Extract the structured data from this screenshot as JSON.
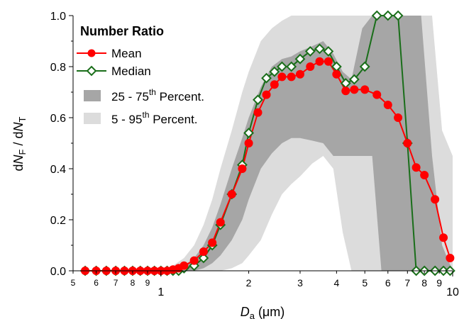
{
  "chart_data": {
    "type": "line",
    "title": "",
    "xlabel": "D_a (μm)",
    "ylabel": "dN_F / dN_T",
    "xscale": "log",
    "xlim": [
      0.5,
      10
    ],
    "ylim": [
      0,
      1.0
    ],
    "x_major_ticks": [
      1,
      10
    ],
    "x_minor_ticks": [
      0.5,
      0.6,
      0.7,
      0.8,
      0.9,
      2,
      3,
      4,
      5,
      6,
      7,
      8,
      9
    ],
    "y_ticks": [
      0.0,
      0.2,
      0.4,
      0.6,
      0.8,
      1.0
    ],
    "legend": {
      "title": "Number Ratio",
      "placement": "top-left",
      "entries": [
        "Mean",
        "Median",
        "25 - 75th Percent.",
        "5 - 95th Percent."
      ]
    },
    "colors": {
      "mean": "#ff0000",
      "median": "#1a6e1a",
      "band_25_75": "#a6a6a6",
      "band_5_95": "#dcdcdc"
    },
    "x": [
      0.55,
      0.6,
      0.65,
      0.7,
      0.75,
      0.8,
      0.85,
      0.9,
      0.95,
      1.0,
      1.05,
      1.1,
      1.15,
      1.2,
      1.3,
      1.4,
      1.5,
      1.6,
      1.75,
      1.9,
      2.0,
      2.15,
      2.3,
      2.45,
      2.6,
      2.8,
      3.0,
      3.25,
      3.5,
      3.75,
      4.0,
      4.3,
      4.6,
      5.0,
      5.5,
      6.0,
      6.5,
      7.0,
      7.5,
      8.0,
      8.7,
      9.3,
      9.8
    ],
    "series": [
      {
        "name": "Mean",
        "values": [
          0,
          0,
          0,
          0,
          0,
          0,
          0,
          0,
          0,
          0,
          0,
          0.005,
          0.01,
          0.02,
          0.04,
          0.075,
          0.11,
          0.19,
          0.3,
          0.4,
          0.5,
          0.62,
          0.69,
          0.73,
          0.76,
          0.76,
          0.77,
          0.8,
          0.82,
          0.82,
          0.77,
          0.705,
          0.71,
          0.71,
          0.69,
          0.65,
          0.6,
          0.5,
          0.405,
          0.375,
          0.28,
          0.13,
          0.05
        ]
      },
      {
        "name": "Median",
        "values": [
          0,
          0,
          0,
          0,
          0,
          0,
          0,
          0,
          0,
          0,
          0,
          0,
          0,
          0.01,
          0.02,
          0.05,
          0.1,
          0.18,
          0.3,
          0.415,
          0.54,
          0.67,
          0.755,
          0.78,
          0.8,
          0.8,
          0.83,
          0.86,
          0.87,
          0.86,
          0.8,
          0.735,
          0.75,
          0.8,
          1.0,
          1.0,
          1.0,
          0.5,
          0.0,
          0.0,
          0.0,
          0.0,
          0.0
        ]
      }
    ],
    "band_25_75": {
      "x": [
        0.5,
        1.0,
        1.1,
        1.2,
        1.3,
        1.4,
        1.5,
        1.6,
        1.75,
        1.9,
        2.0,
        2.2,
        2.4,
        2.6,
        2.8,
        3.0,
        3.3,
        3.6,
        3.9,
        4.2,
        4.5,
        4.9,
        5.3,
        5.7,
        6.2,
        6.7,
        7.2,
        7.8,
        8.5,
        9.2,
        10.0
      ],
      "upper": [
        0,
        0,
        0.01,
        0.02,
        0.05,
        0.1,
        0.17,
        0.26,
        0.4,
        0.52,
        0.6,
        0.72,
        0.8,
        0.83,
        0.84,
        0.86,
        0.88,
        0.9,
        0.85,
        0.78,
        0.75,
        0.95,
        1.0,
        1.0,
        1.0,
        1.0,
        1.0,
        1.0,
        0.45,
        0.1,
        0.0
      ],
      "lower": [
        0,
        0,
        0,
        0,
        0,
        0.01,
        0.03,
        0.06,
        0.12,
        0.2,
        0.28,
        0.4,
        0.46,
        0.5,
        0.52,
        0.52,
        0.51,
        0.5,
        0.45,
        0.45,
        0.45,
        0.45,
        0.45,
        0.0,
        0.0,
        0.0,
        0.0,
        0.0,
        0.0,
        0.0,
        0.0
      ]
    },
    "band_5_95": {
      "x": [
        0.5,
        1.0,
        1.1,
        1.2,
        1.3,
        1.4,
        1.5,
        1.6,
        1.75,
        1.9,
        2.0,
        2.2,
        2.4,
        2.6,
        2.8,
        3.0,
        3.3,
        3.6,
        3.9,
        4.2,
        4.5,
        4.9,
        5.3,
        5.7,
        6.2,
        6.7,
        7.2,
        7.8,
        8.5,
        9.2,
        10.0
      ],
      "upper": [
        0,
        0,
        0.02,
        0.05,
        0.1,
        0.18,
        0.28,
        0.4,
        0.55,
        0.7,
        0.78,
        0.9,
        0.95,
        0.98,
        1.0,
        1.0,
        1.0,
        1.0,
        1.0,
        1.0,
        1.0,
        1.0,
        1.0,
        1.0,
        1.0,
        1.0,
        1.0,
        1.0,
        1.0,
        0.55,
        0.45
      ],
      "lower": [
        0,
        0,
        0,
        0,
        0,
        0,
        0,
        0,
        0.01,
        0.03,
        0.06,
        0.12,
        0.22,
        0.3,
        0.34,
        0.37,
        0.42,
        0.45,
        0.4,
        0.15,
        0.0,
        0.0,
        0.0,
        0.0,
        0.0,
        0.0,
        0.0,
        0.0,
        0.0,
        0.0,
        0.0
      ]
    }
  }
}
